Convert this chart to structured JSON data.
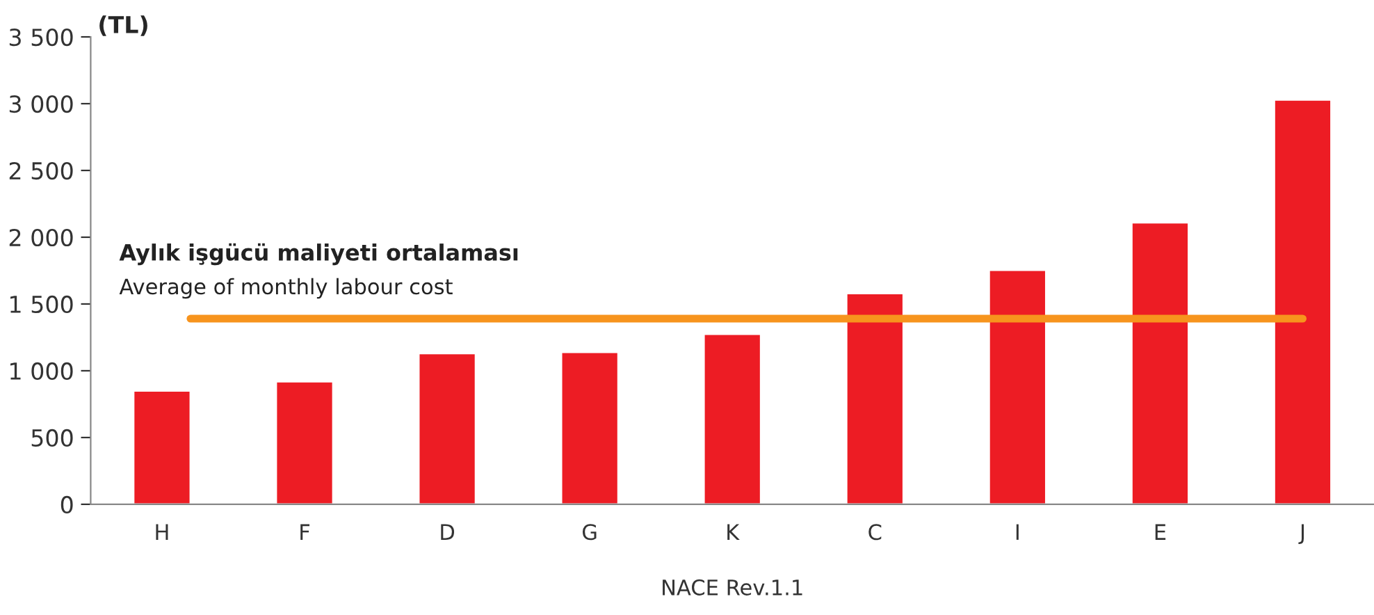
{
  "chart_data": {
    "type": "bar",
    "categories": [
      "H",
      "F",
      "D",
      "G",
      "K",
      "C",
      "I",
      "E",
      "J"
    ],
    "values": [
      850,
      920,
      1130,
      1140,
      1275,
      1580,
      1755,
      2110,
      3030
    ],
    "color": "#ed1c24",
    "ylabel": "(TL)",
    "xlabel": "NACE Rev.1.1",
    "ylim": [
      0,
      3500
    ],
    "yticks": [
      0,
      500,
      {
        "value": 1000,
        "label": "1 000"
      },
      {
        "value": 1500,
        "label": "1 500"
      },
      {
        "value": 2000,
        "label": "2 000"
      },
      {
        "value": 2500,
        "label": "2 500"
      },
      {
        "value": 3000,
        "label": "3 000"
      },
      {
        "value": 3500,
        "label": "3 500"
      }
    ],
    "ref_lines": [
      {
        "axis": "y",
        "value": 1390,
        "label": "Aylık işgücü maliyeti ortalaması",
        "color": "#f7941d"
      }
    ],
    "annotations": [
      "Average of monthly labour cost"
    ],
    "grid": false,
    "legend": false
  }
}
